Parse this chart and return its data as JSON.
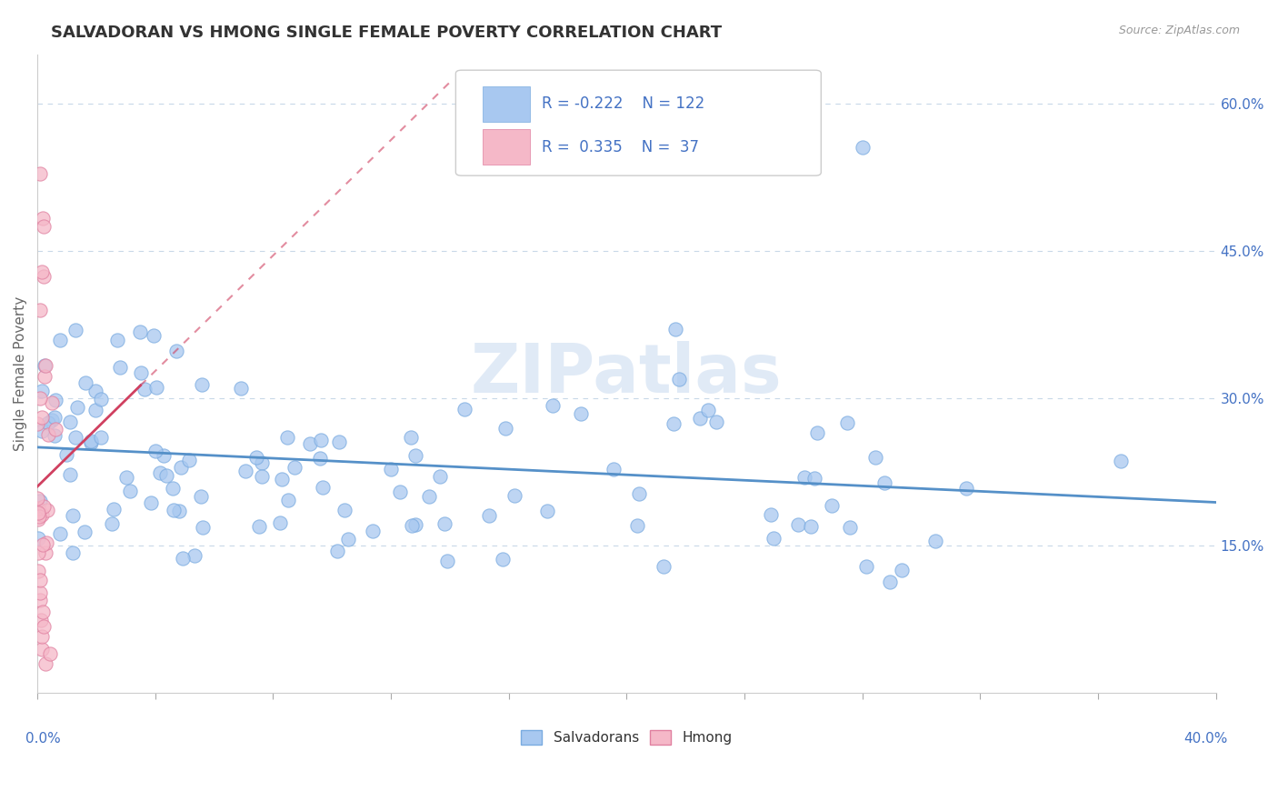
{
  "title": "SALVADORAN VS HMONG SINGLE FEMALE POVERTY CORRELATION CHART",
  "source_text": "Source: ZipAtlas.com",
  "ylabel": "Single Female Poverty",
  "y_ticks": [
    0.15,
    0.3,
    0.45,
    0.6
  ],
  "y_tick_labels": [
    "15.0%",
    "30.0%",
    "45.0%",
    "60.0%"
  ],
  "xlim": [
    0.0,
    0.4
  ],
  "ylim": [
    0.0,
    0.65
  ],
  "salvadoran_R": -0.222,
  "salvadoran_N": 122,
  "hmong_R": 0.335,
  "hmong_N": 37,
  "salvadoran_color": "#a8c8f0",
  "salvadoran_edge_color": "#7aabe0",
  "salvadoran_line_color": "#5590c8",
  "hmong_color": "#f5b8c8",
  "hmong_edge_color": "#e080a0",
  "hmong_line_color": "#d04060",
  "legend_text_color": "#4472c4",
  "legend_label_color": "#333333",
  "watermark": "ZIPatlas",
  "watermark_color": "#c8daf0",
  "background_color": "#ffffff",
  "grid_color": "#c8d8e8",
  "title_color": "#333333",
  "source_color": "#999999",
  "ylabel_color": "#666666"
}
